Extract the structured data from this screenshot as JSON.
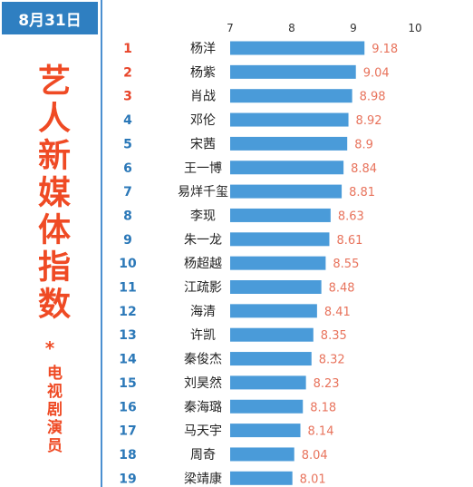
{
  "header": {
    "date": "8月31日"
  },
  "title": {
    "main": "艺人新媒体指数",
    "star": "*",
    "sub": "电视剧演员"
  },
  "colors": {
    "bar": "#4a9bd9",
    "value_label": "#e8735c",
    "rank_top3": "#e8452a",
    "rank_rest": "#2b78b8",
    "accent": "#ef4a24"
  },
  "chart_data": {
    "type": "bar",
    "orientation": "horizontal",
    "xlim": [
      7,
      10
    ],
    "xticks": [
      "7",
      "8",
      "9",
      "10"
    ],
    "gridlines": false,
    "ranks": [
      "1",
      "2",
      "3",
      "4",
      "5",
      "6",
      "7",
      "8",
      "9",
      "10",
      "11",
      "12",
      "13",
      "14",
      "15",
      "16",
      "17",
      "18",
      "19"
    ],
    "categories": [
      "杨洋",
      "杨紫",
      "肖战",
      "邓伦",
      "宋茜",
      "王一博",
      "易烊千玺",
      "李现",
      "朱一龙",
      "杨超越",
      "江疏影",
      "海清",
      "许凯",
      "秦俊杰",
      "刘昊然",
      "秦海璐",
      "马天宇",
      "周奇",
      "梁靖康"
    ],
    "values": [
      9.18,
      9.04,
      8.98,
      8.92,
      8.9,
      8.84,
      8.81,
      8.63,
      8.61,
      8.55,
      8.48,
      8.41,
      8.35,
      8.32,
      8.23,
      8.18,
      8.14,
      8.04,
      8.01
    ],
    "value_labels": [
      "9.18",
      "9.04",
      "8.98",
      "8.92",
      "8.9",
      "8.84",
      "8.81",
      "8.63",
      "8.61",
      "8.55",
      "8.48",
      "8.41",
      "8.35",
      "8.32",
      "8.23",
      "8.18",
      "8.14",
      "8.04",
      "8.01"
    ]
  }
}
